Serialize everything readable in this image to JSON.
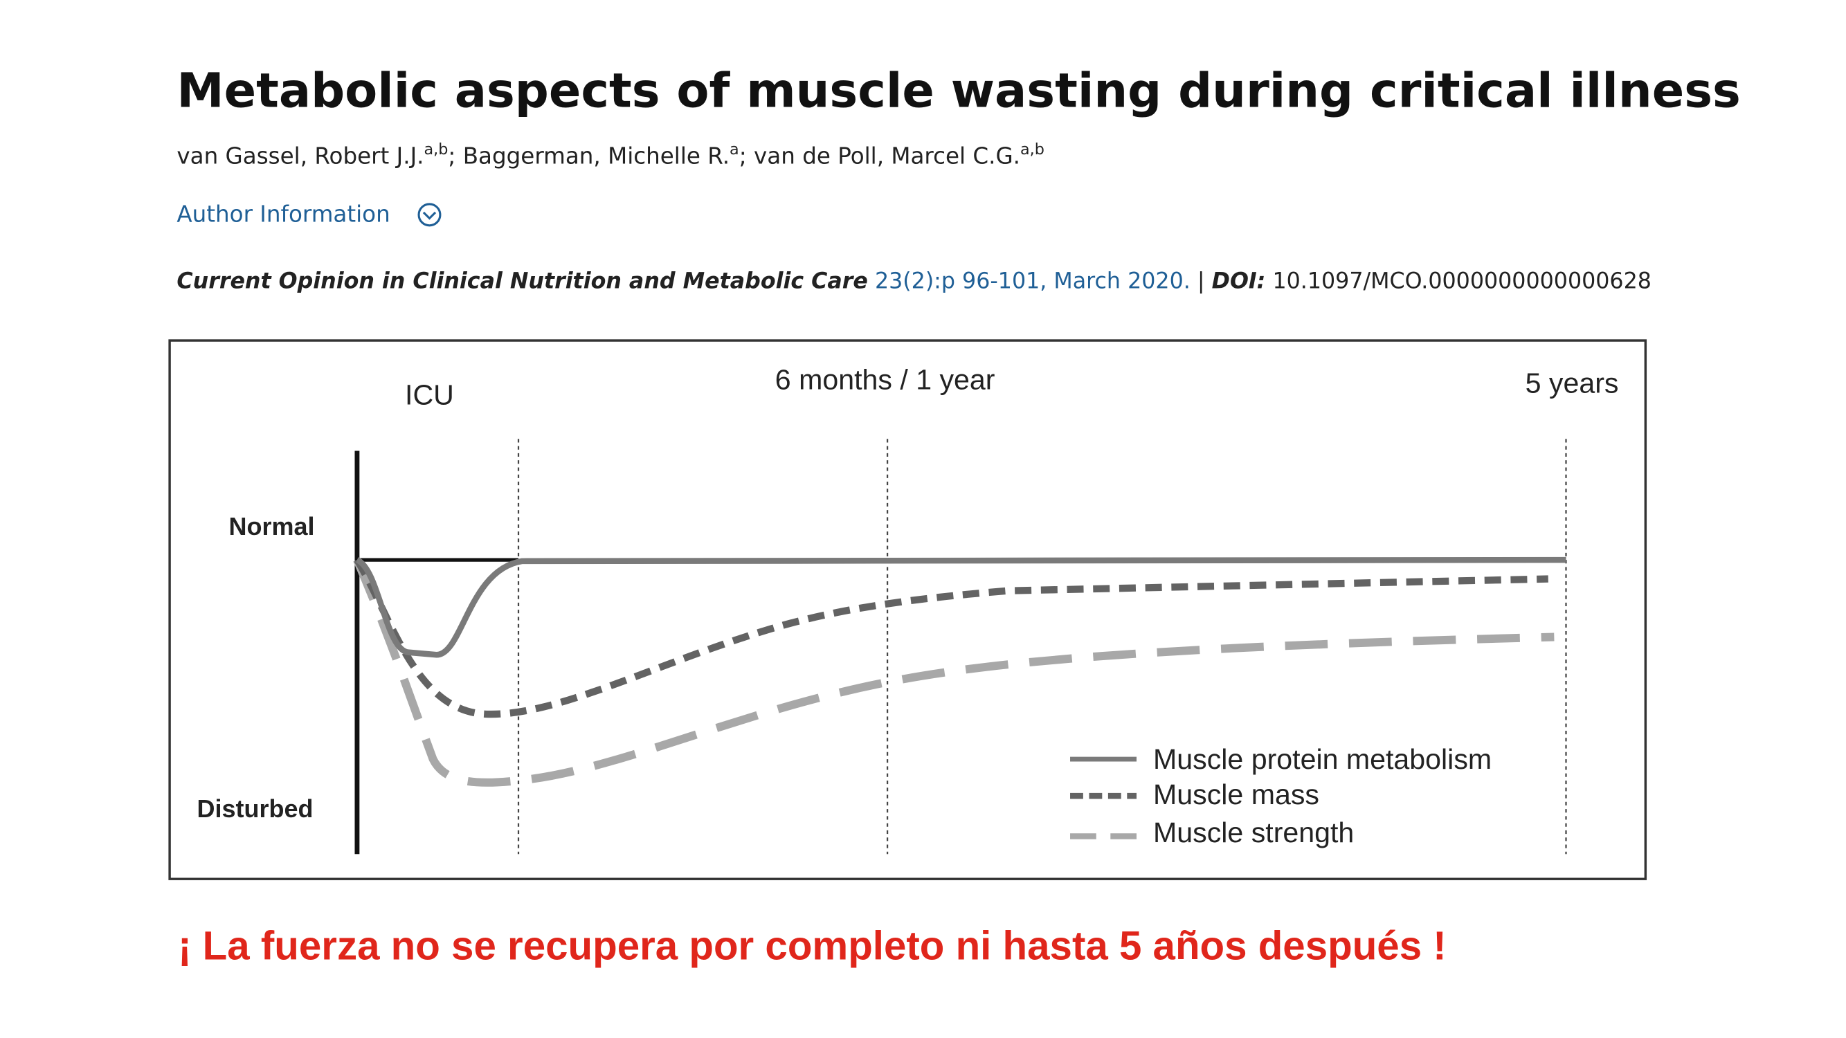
{
  "header": {
    "title": "Metabolic aspects of muscle wasting during critical illness",
    "authors": [
      {
        "name": "van Gassel, Robert J.J.",
        "sup": "a,b"
      },
      {
        "name": "Baggerman, Michelle R.",
        "sup": "a"
      },
      {
        "name": "van de Poll, Marcel C.G.",
        "sup": "a,b"
      }
    ],
    "author_separator": ";",
    "author_information": "Author Information"
  },
  "citation": {
    "journal": "Current Opinion in Clinical Nutrition and Metabolic Care",
    "issue": "23(2):p 96-101, March 2020.",
    "separator": "|",
    "doi_label": "DOI:",
    "doi": "10.1097/MCO.0000000000000628"
  },
  "figure": {
    "phases": [
      "ICU",
      "6 months / 1 year",
      "5 years"
    ],
    "levels": [
      "Normal",
      "Disturbed"
    ],
    "legend": [
      "Muscle protein metabolism",
      "Muscle mass",
      "Muscle strength"
    ]
  },
  "note": "¡ La fuerza no se recupera por completo ni hasta 5 años después !"
}
